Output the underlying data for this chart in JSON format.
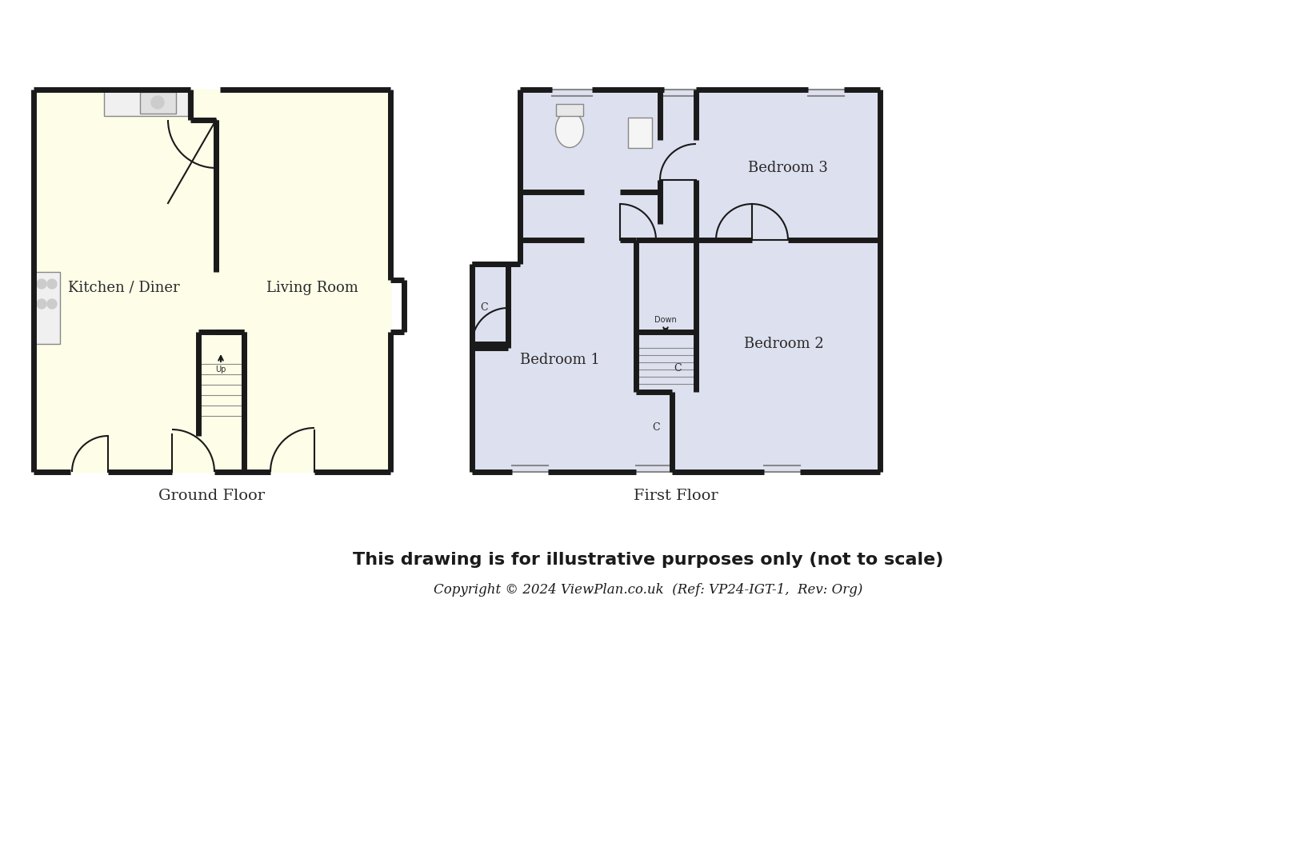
{
  "bg_color": "#ffffff",
  "wall_color": "#1a1a1a",
  "wall_lw": 5,
  "gf_fill": "#fdfde8",
  "ff_fill": "#dde0ee",
  "title_text": "This drawing is for illustrative purposes only (not to scale)",
  "copyright_text": "Copyright © 2024 ViewPlan.co.uk  (Ref: VP24-IGT-1,  Rev: Org)",
  "gf_label": "Ground Floor",
  "ff_label": "First Floor",
  "kitchen_label": "Kitchen / Diner",
  "living_label": "Living Room",
  "bed1_label": "Bedroom 1",
  "bed2_label": "Bedroom 2",
  "bed3_label": "Bedroom 3"
}
